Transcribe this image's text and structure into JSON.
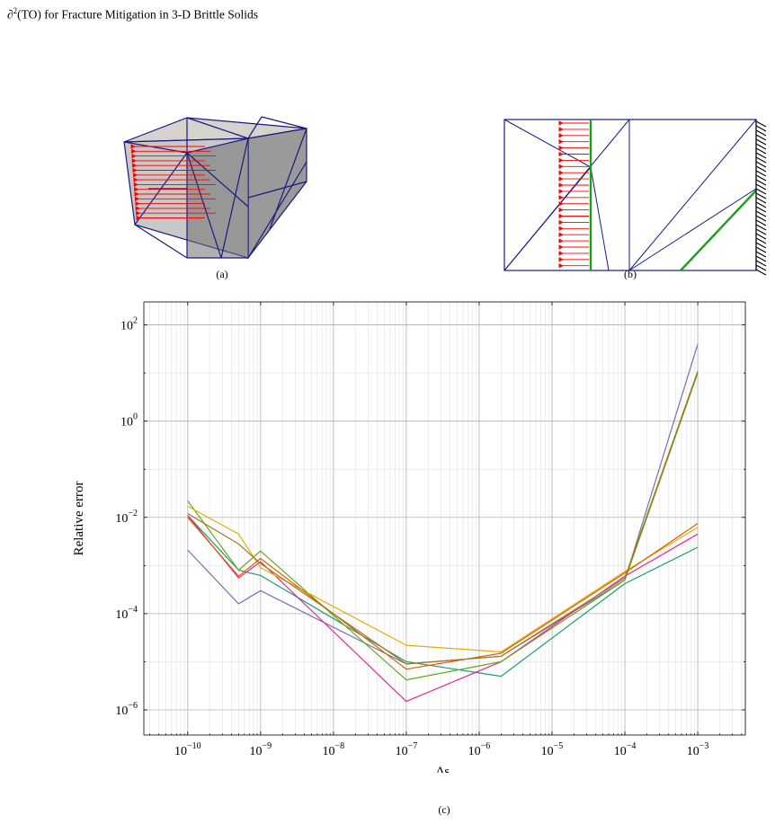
{
  "header": {
    "prefix": "∂",
    "sup": "2",
    "abbr": "(TO)",
    "rest": " for Fracture Mitigation in 3-D Brittle Solids"
  },
  "captions": {
    "a": "(a)",
    "b": "(b)",
    "c": "(c)"
  },
  "colors": {
    "mesh": "#1a1a80",
    "arrows": "#ff0000",
    "crack": "#1aa01a",
    "grid_major": "#b0b0b0",
    "grid_minor": "#e2e2e2"
  },
  "chart_data": {
    "type": "line",
    "xlabel": "Δs",
    "xlabel_sub": "j",
    "ylabel": "Relative error",
    "xscale": "log",
    "yscale": "log",
    "xlim": [
      2.5e-11,
      0.0045
    ],
    "ylim": [
      3e-07,
      300
    ],
    "grid": "major and minor",
    "x_ticks": [
      {
        "base": "10",
        "exp": "−10"
      },
      {
        "base": "10",
        "exp": "−9"
      },
      {
        "base": "10",
        "exp": "−8"
      },
      {
        "base": "10",
        "exp": "−7"
      },
      {
        "base": "10",
        "exp": "−6"
      },
      {
        "base": "10",
        "exp": "−5"
      },
      {
        "base": "10",
        "exp": "−4"
      },
      {
        "base": "10",
        "exp": "−3"
      }
    ],
    "y_ticks": [
      {
        "base": "10",
        "exp": "−6"
      },
      {
        "base": "10",
        "exp": "−4"
      },
      {
        "base": "10",
        "exp": "−2"
      },
      {
        "base": "10",
        "exp": "0"
      },
      {
        "base": "10",
        "exp": "2"
      }
    ],
    "x": [
      1e-10,
      5e-10,
      1e-09,
      1e-07,
      2e-06,
      0.0001,
      0.001
    ],
    "series": [
      {
        "color": "#7570b3",
        "values": [
          0.0021,
          0.00016,
          0.0003,
          9e-06,
          1.3e-05,
          0.0005,
          40
        ]
      },
      {
        "color": "#1b9e77",
        "values": [
          0.011,
          0.0008,
          0.00062,
          1e-05,
          5e-06,
          0.00042,
          0.0024
        ]
      },
      {
        "color": "#e7298a",
        "values": [
          0.011,
          0.00055,
          0.0012,
          1.5e-06,
          1e-05,
          0.0006,
          0.0045
        ]
      },
      {
        "color": "#66a61e",
        "values": [
          0.022,
          0.0008,
          0.002,
          4.2e-06,
          1e-05,
          0.0005,
          10
        ]
      },
      {
        "color": "#e6ab02",
        "values": [
          0.017,
          0.0045,
          0.0009,
          2.2e-05,
          1.6e-05,
          0.00075,
          0.0062
        ]
      },
      {
        "color": "#d95f02",
        "values": [
          0.01,
          0.0006,
          0.0014,
          7e-06,
          1.5e-05,
          0.0007,
          0.0075
        ]
      },
      {
        "color": "#a6761d",
        "values": [
          0.012,
          0.0028,
          0.0011,
          9e-06,
          1.3e-05,
          0.00055,
          11
        ]
      }
    ]
  }
}
